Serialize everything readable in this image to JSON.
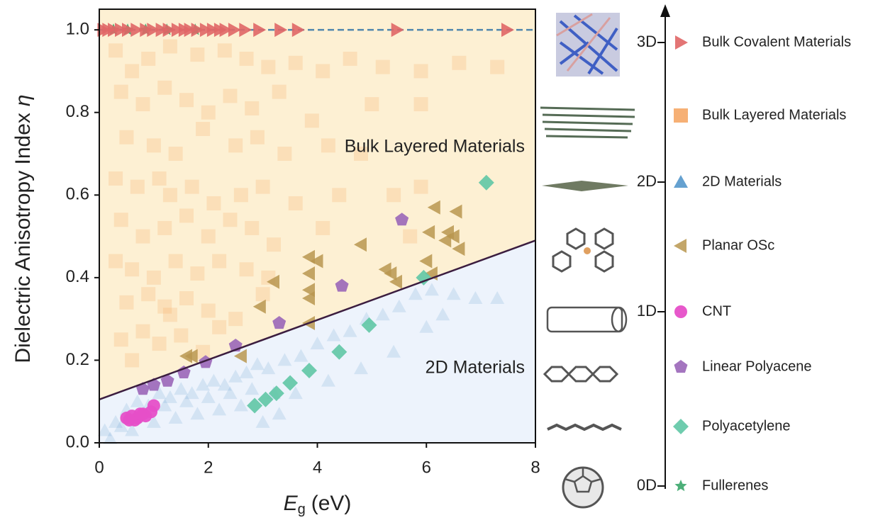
{
  "chart_data": {
    "type": "scatter",
    "xlabel_symbol": "E",
    "xlabel_subscript": "g",
    "xlabel_unit": "(eV)",
    "ylabel_text": "Dielectric Anisotropy Index",
    "ylabel_symbol": "η",
    "xlim": [
      0,
      8
    ],
    "ylim": [
      0,
      1.05
    ],
    "xticks": [
      0,
      2,
      4,
      6,
      8
    ],
    "yticks": [
      {
        "value": 0,
        "label": "0.0"
      },
      0.2,
      0.4,
      0.6,
      0.8,
      {
        "value": 1,
        "label": "1.0"
      }
    ],
    "annotations": [
      "Bulk Layered Materials",
      "2D Materials"
    ],
    "boundary_line": {
      "x": [
        0,
        8
      ],
      "y": [
        0.105,
        0.49
      ],
      "color": "#3b1d3f"
    },
    "reference_line": {
      "y": 1.0,
      "color": "#4f86ad"
    },
    "region_colors": {
      "above": "#fdf0d3",
      "below": "#edf3fc"
    },
    "dimensions": [
      "3D",
      "2D",
      "1D",
      "0D"
    ],
    "series": [
      {
        "name": "Bulk Covalent Materials",
        "color": "#e06666",
        "marker": "triangle-right",
        "opacity": 0.9,
        "x": [
          0.07,
          0.16,
          0.26,
          0.39,
          0.52,
          0.68,
          0.85,
          0.98,
          1.14,
          1.27,
          1.43,
          1.56,
          1.66,
          1.79,
          1.95,
          2.08,
          2.21,
          2.31,
          2.47,
          2.67,
          2.93,
          3.32,
          3.64,
          5.46,
          7.48
        ],
        "values": [
          1,
          1,
          1,
          1,
          1,
          1,
          1,
          1,
          1,
          1,
          1,
          1,
          1,
          1,
          1,
          1,
          1,
          1,
          1,
          1,
          1,
          1,
          1,
          1,
          1
        ]
      },
      {
        "name": "Bulk Layered Materials",
        "color": "#f5a25d",
        "marker": "square",
        "opacity": 0.22,
        "x": [
          0.3,
          0.6,
          0.9,
          1.3,
          1.8,
          2.3,
          2.7,
          3.1,
          3.6,
          4.1,
          4.6,
          5.2,
          5.9,
          6.6,
          7.3,
          0.4,
          0.8,
          1.2,
          1.6,
          2.0,
          2.4,
          2.8,
          3.3,
          3.9,
          5.0,
          5.9,
          0.5,
          1.0,
          1.4,
          1.9,
          2.5,
          2.9,
          3.4,
          4.2,
          4.8,
          0.3,
          0.7,
          1.1,
          1.3,
          1.7,
          2.1,
          2.6,
          3.0,
          3.6,
          4.4,
          5.4,
          5.9,
          0.4,
          0.8,
          1.2,
          1.6,
          2.0,
          2.4,
          2.8,
          3.2,
          4.1,
          5.7,
          0.3,
          0.6,
          1.0,
          1.4,
          1.8,
          2.2,
          2.7,
          3.1,
          0.5,
          0.9,
          1.2,
          1.3,
          1.6,
          2.0,
          2.5,
          3.0,
          0.4,
          0.8,
          1.1,
          1.5,
          2.2,
          0.6,
          1.9
        ],
        "values": [
          0.95,
          0.9,
          0.93,
          0.96,
          0.94,
          0.95,
          0.93,
          0.91,
          0.92,
          0.9,
          0.93,
          0.91,
          0.9,
          0.92,
          0.91,
          0.85,
          0.82,
          0.86,
          0.83,
          0.8,
          0.84,
          0.81,
          0.85,
          0.78,
          0.82,
          0.82,
          0.74,
          0.72,
          0.7,
          0.76,
          0.72,
          0.74,
          0.7,
          0.72,
          0.7,
          0.64,
          0.62,
          0.64,
          0.6,
          0.62,
          0.58,
          0.6,
          0.62,
          0.58,
          0.6,
          0.6,
          0.62,
          0.54,
          0.5,
          0.52,
          0.55,
          0.5,
          0.54,
          0.52,
          0.48,
          0.52,
          0.5,
          0.44,
          0.42,
          0.4,
          0.44,
          0.41,
          0.44,
          0.42,
          0.4,
          0.34,
          0.36,
          0.33,
          0.31,
          0.35,
          0.32,
          0.3,
          0.36,
          0.25,
          0.27,
          0.24,
          0.26,
          0.28,
          0.2,
          0.22
        ]
      },
      {
        "name": "2D Materials",
        "color": "#4a90c8",
        "marker": "triangle-up",
        "opacity": 0.16,
        "x": [
          0.1,
          0.3,
          0.5,
          0.7,
          0.9,
          1.1,
          1.3,
          1.5,
          1.7,
          1.9,
          2.1,
          2.3,
          2.5,
          2.7,
          2.9,
          3.1,
          3.4,
          3.7,
          4.0,
          4.3,
          4.6,
          4.9,
          5.2,
          5.5,
          5.8,
          6.1,
          6.5,
          6.9,
          7.3,
          0.2,
          0.6,
          1.0,
          1.4,
          1.8,
          2.2,
          2.6,
          3.0,
          3.3,
          3.6,
          4.2,
          4.8,
          5.4,
          6.0,
          6.3,
          1.2,
          1.6,
          2.0,
          2.4,
          2.8,
          3.2,
          0.8,
          0.4
        ],
        "values": [
          0.03,
          0.05,
          0.08,
          0.1,
          0.09,
          0.12,
          0.11,
          0.13,
          0.12,
          0.14,
          0.15,
          0.14,
          0.16,
          0.17,
          0.19,
          0.18,
          0.2,
          0.21,
          0.24,
          0.26,
          0.27,
          0.3,
          0.31,
          0.33,
          0.36,
          0.37,
          0.36,
          0.35,
          0.35,
          0.01,
          0.03,
          0.05,
          0.06,
          0.07,
          0.08,
          0.09,
          0.05,
          0.07,
          0.12,
          0.15,
          0.18,
          0.22,
          0.28,
          0.31,
          0.09,
          0.1,
          0.11,
          0.12,
          0.13,
          0.12,
          0.07,
          0.04
        ]
      },
      {
        "name": "Planar OSc",
        "color": "#b8974f",
        "marker": "triangle-left",
        "opacity": 0.85,
        "x": [
          6.15,
          6.55,
          6.05,
          6.4,
          6.35,
          6.5,
          6.6,
          4.8,
          3.85,
          4.0,
          3.85,
          3.85,
          5.25,
          5.35,
          5.45,
          6.0,
          6.1,
          3.2,
          3.85,
          2.95,
          3.85,
          1.7,
          1.6,
          2.6
        ],
        "values": [
          0.57,
          0.56,
          0.51,
          0.51,
          0.49,
          0.5,
          0.47,
          0.48,
          0.45,
          0.44,
          0.41,
          0.37,
          0.42,
          0.41,
          0.39,
          0.44,
          0.41,
          0.39,
          0.35,
          0.33,
          0.29,
          0.21,
          0.21,
          0.21
        ]
      },
      {
        "name": "CNT",
        "color": "#e64fc8",
        "marker": "circle",
        "opacity": 0.95,
        "x": [
          0.5,
          0.55,
          0.6,
          0.7,
          0.8,
          0.85,
          0.95,
          1.0,
          0.65,
          0.75
        ],
        "values": [
          0.06,
          0.055,
          0.065,
          0.06,
          0.07,
          0.065,
          0.075,
          0.09,
          0.055,
          0.07
        ]
      },
      {
        "name": "Linear Polyacene",
        "color": "#9a66b8",
        "marker": "pentagon",
        "opacity": 0.9,
        "x": [
          5.55,
          4.45,
          3.3,
          2.5,
          1.95,
          1.55,
          1.25,
          1.0,
          0.8
        ],
        "values": [
          0.54,
          0.38,
          0.29,
          0.235,
          0.195,
          0.17,
          0.15,
          0.14,
          0.13
        ]
      },
      {
        "name": "Polyacetylene",
        "color": "#5fc6a5",
        "marker": "diamond",
        "opacity": 0.9,
        "x": [
          7.1,
          5.95,
          4.95,
          4.4,
          3.85,
          3.5,
          3.25,
          3.05,
          2.85
        ],
        "values": [
          0.63,
          0.4,
          0.285,
          0.22,
          0.175,
          0.145,
          0.12,
          0.105,
          0.09
        ]
      },
      {
        "name": "Fullerenes",
        "color": "#3aa66a",
        "marker": "star",
        "opacity": 0.9,
        "x": [
          0.26,
          0.52,
          0.85,
          1.24,
          1.76
        ],
        "values": [
          1,
          1,
          1,
          1,
          1
        ]
      }
    ]
  }
}
